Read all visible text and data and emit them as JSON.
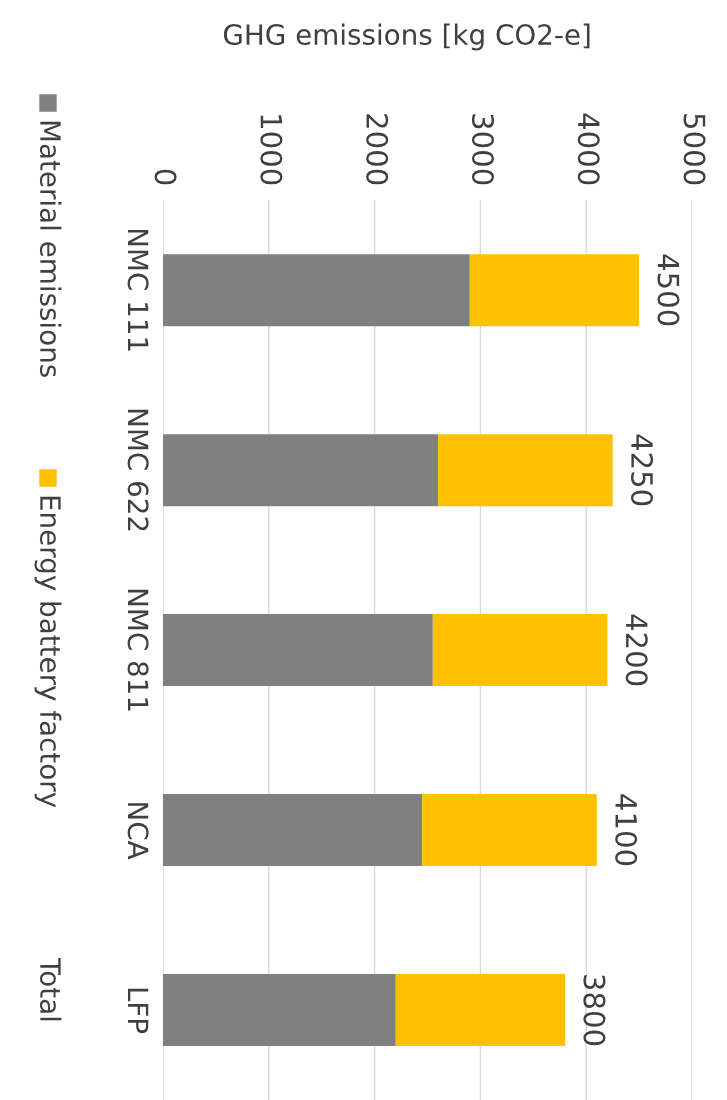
{
  "chart_data": {
    "type": "bar",
    "orientation": "horizontal",
    "stacked": true,
    "xlabel": "GHG emissions [kg CO2-e]",
    "categories": [
      "NMC 111",
      "NMC 622",
      "NMC 811",
      "NCA",
      "LFP"
    ],
    "series": [
      {
        "name": "Material emissions",
        "color": "#808080",
        "values": [
          2900,
          2600,
          2550,
          2450,
          2200
        ]
      },
      {
        "name": "Energy battery factory",
        "color": "#ffc000",
        "values": [
          1600,
          1650,
          1650,
          1650,
          1600
        ]
      }
    ],
    "totals": [
      "4500",
      "4250",
      "4200",
      "4100",
      "3800"
    ],
    "annotations": [
      "Total"
    ],
    "xlim": [
      0,
      5000
    ],
    "xticks": [
      0,
      1000,
      2000,
      3000,
      4000,
      5000
    ],
    "grid": "x",
    "legend": "left"
  }
}
